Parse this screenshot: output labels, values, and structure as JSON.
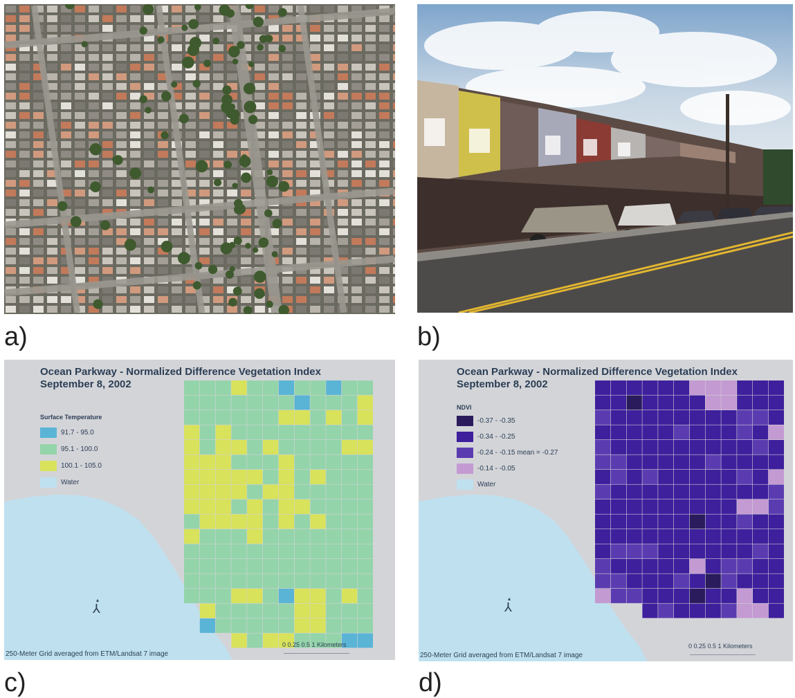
{
  "panel_labels": {
    "a": "a)",
    "b": "b)",
    "c": "c)",
    "d": "d)"
  },
  "map_c": {
    "title_line1": "Ocean Parkway - Normalized Difference Vegetation Index",
    "title_line2": "September 8, 2002",
    "legend_title": "Surface Temperature",
    "legend": [
      {
        "label": "91.7 - 95.0",
        "color": "#5ab4d6"
      },
      {
        "label": "95.1 - 100.0",
        "color": "#94d4aa"
      },
      {
        "label": "100.1 - 105.0",
        "color": "#d8e25a"
      },
      {
        "label": "Water",
        "color": "#bfe0ef"
      }
    ],
    "footnote": "250-Meter Grid averaged from ETM/Landsat 7 image",
    "scale_ticks": "0  0.25 0.5          1  Kilometers"
  },
  "map_d": {
    "title_line1": "Ocean Parkway - Normalized Difference Vegetation Index",
    "title_line2": "September 8, 2002",
    "legend_title": "NDVI",
    "legend": [
      {
        "label": "-0.37 - -0.35",
        "color": "#2a1c5c"
      },
      {
        "label": "-0.34 - -0.25",
        "color": "#3e1f9c"
      },
      {
        "label": "-0.24 - -0.15  mean = -0.27",
        "color": "#5b3cb0"
      },
      {
        "label": "-0.14 - -0.05",
        "color": "#c49ad2"
      },
      {
        "label": "Water",
        "color": "#bfe0ef"
      }
    ],
    "footnote": "250-Meter Grid averaged from ETM/Landsat 7 image",
    "scale_ticks": "0  0.25 0.5          1  Kilometers"
  },
  "colors": {
    "land": "#d3d4d8",
    "water": "#bfe0ef",
    "temp_low": "#5ab4d6",
    "temp_mid": "#94d4aa",
    "temp_high": "#d8e25a",
    "ndvi_darkest": "#2a1c5c",
    "ndvi_dark": "#3e1f9c",
    "ndvi_mid": "#5b3cb0",
    "ndvi_light": "#c49ad2"
  }
}
